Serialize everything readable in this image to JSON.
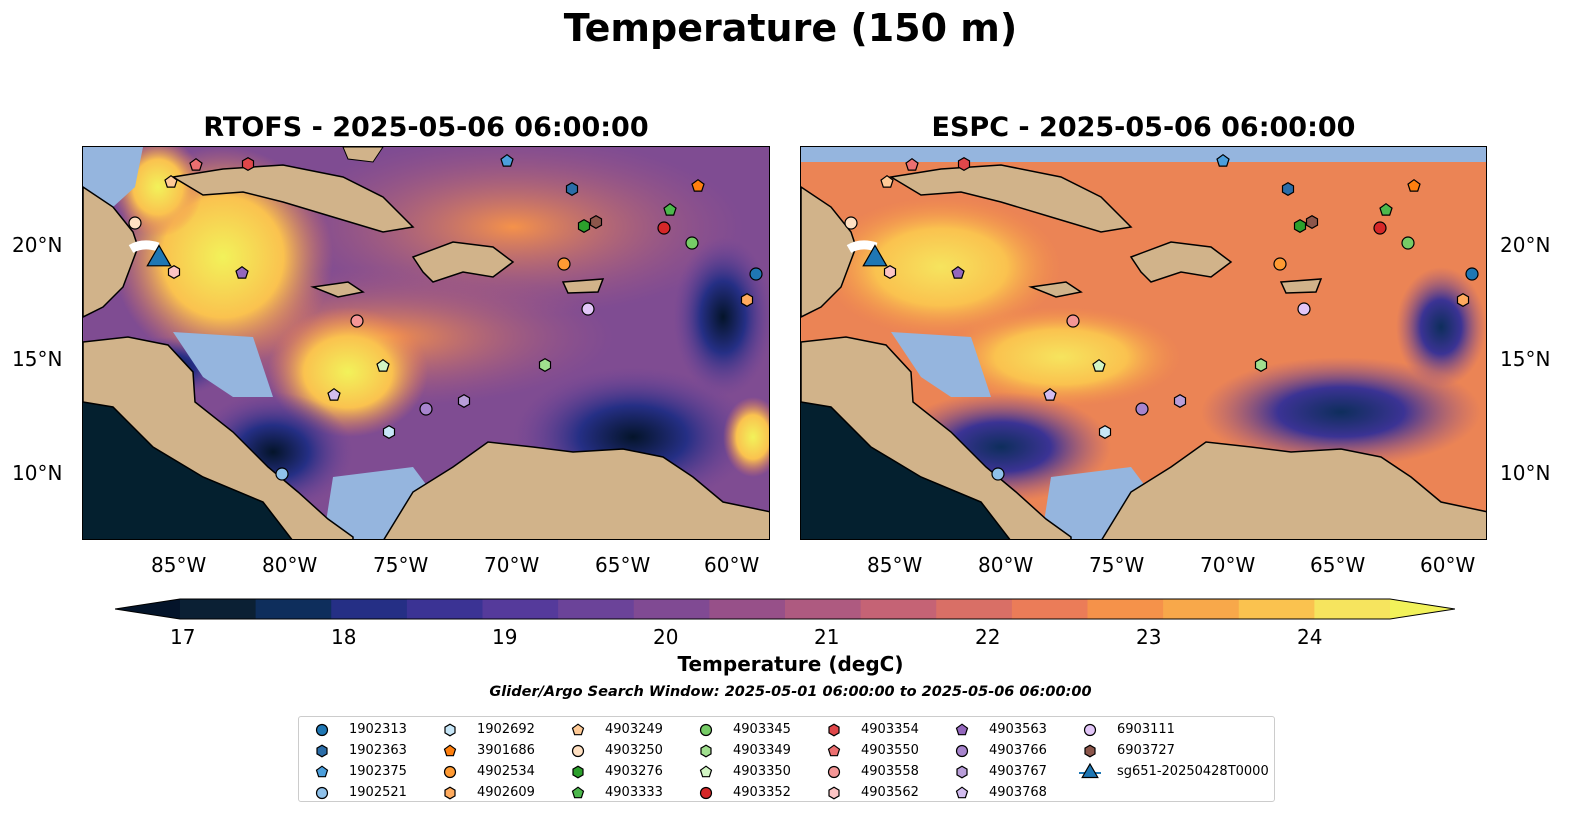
{
  "title": "Temperature (150 m)",
  "panels": [
    {
      "title": "RTOFS - 2025-05-06 06:00:00"
    },
    {
      "title": "ESPC - 2025-05-06 06:00:00"
    }
  ],
  "axes": {
    "lon_ticks": [
      "85°W",
      "80°W",
      "75°W",
      "70°W",
      "65°W",
      "60°W"
    ],
    "lat_ticks": [
      "20°N",
      "15°N",
      "10°N"
    ]
  },
  "colorbar": {
    "label": "Temperature (degC)",
    "ticks": [
      "17",
      "18",
      "19",
      "20",
      "21",
      "22",
      "23",
      "24"
    ],
    "colors": [
      "#0b2034",
      "#0e2e5c",
      "#252f85",
      "#3b3394",
      "#553a9b",
      "#6b4399",
      "#804a93",
      "#975089",
      "#ae5a80",
      "#c56375",
      "#d96f66",
      "#eb7c58",
      "#f5924a",
      "#f8a84a",
      "#fac24f",
      "#f6e45e"
    ],
    "min_color": "#04142a",
    "max_color": "#f2f25a"
  },
  "search_window": "Glider/Argo Search Window: 2025-05-01 06:00:00 to 2025-05-06 06:00:00",
  "legend": {
    "items": [
      {
        "label": "1902313",
        "marker": "circle",
        "color": "#1f77b4"
      },
      {
        "label": "1902363",
        "marker": "hexagon",
        "color": "#2b6da8"
      },
      {
        "label": "1902375",
        "marker": "pentagon",
        "color": "#4c9fdc"
      },
      {
        "label": "1902521",
        "marker": "circle",
        "color": "#8fc1ea"
      },
      {
        "label": "1902692",
        "marker": "hexagon",
        "color": "#c7e6f7"
      },
      {
        "label": "3901686",
        "marker": "pentagon",
        "color": "#ff7f0e"
      },
      {
        "label": "4902534",
        "marker": "circle",
        "color": "#ff9a33"
      },
      {
        "label": "4902609",
        "marker": "hexagon",
        "color": "#ffab5e"
      },
      {
        "label": "4903249",
        "marker": "pentagon",
        "color": "#ffca96"
      },
      {
        "label": "4903250",
        "marker": "circle",
        "color": "#ffe0c2"
      },
      {
        "label": "4903276",
        "marker": "hexagon",
        "color": "#2ca02c"
      },
      {
        "label": "4903333",
        "marker": "pentagon",
        "color": "#4cb84c"
      },
      {
        "label": "4903345",
        "marker": "circle",
        "color": "#76cc66"
      },
      {
        "label": "4903349",
        "marker": "hexagon",
        "color": "#a0df8e"
      },
      {
        "label": "4903350",
        "marker": "pentagon",
        "color": "#d2f5c4"
      },
      {
        "label": "4903352",
        "marker": "circle",
        "color": "#d62728"
      },
      {
        "label": "4903354",
        "marker": "hexagon",
        "color": "#e0474a"
      },
      {
        "label": "4903550",
        "marker": "pentagon",
        "color": "#ec6f70"
      },
      {
        "label": "4903558",
        "marker": "circle",
        "color": "#f49696"
      },
      {
        "label": "4903562",
        "marker": "hexagon",
        "color": "#fcc4c4"
      },
      {
        "label": "4903563",
        "marker": "pentagon",
        "color": "#9467bd"
      },
      {
        "label": "4903766",
        "marker": "circle",
        "color": "#a784cd"
      },
      {
        "label": "4903767",
        "marker": "hexagon",
        "color": "#b99ed9"
      },
      {
        "label": "4903768",
        "marker": "pentagon",
        "color": "#d3bdf0"
      },
      {
        "label": "6903111",
        "marker": "circle",
        "color": "#e2c6f8"
      },
      {
        "label": "6903727",
        "marker": "hexagon",
        "color": "#8c564b"
      },
      {
        "label": "sg651-20250428T0000",
        "marker": "triangle",
        "color": "#1f77b4"
      }
    ]
  }
}
